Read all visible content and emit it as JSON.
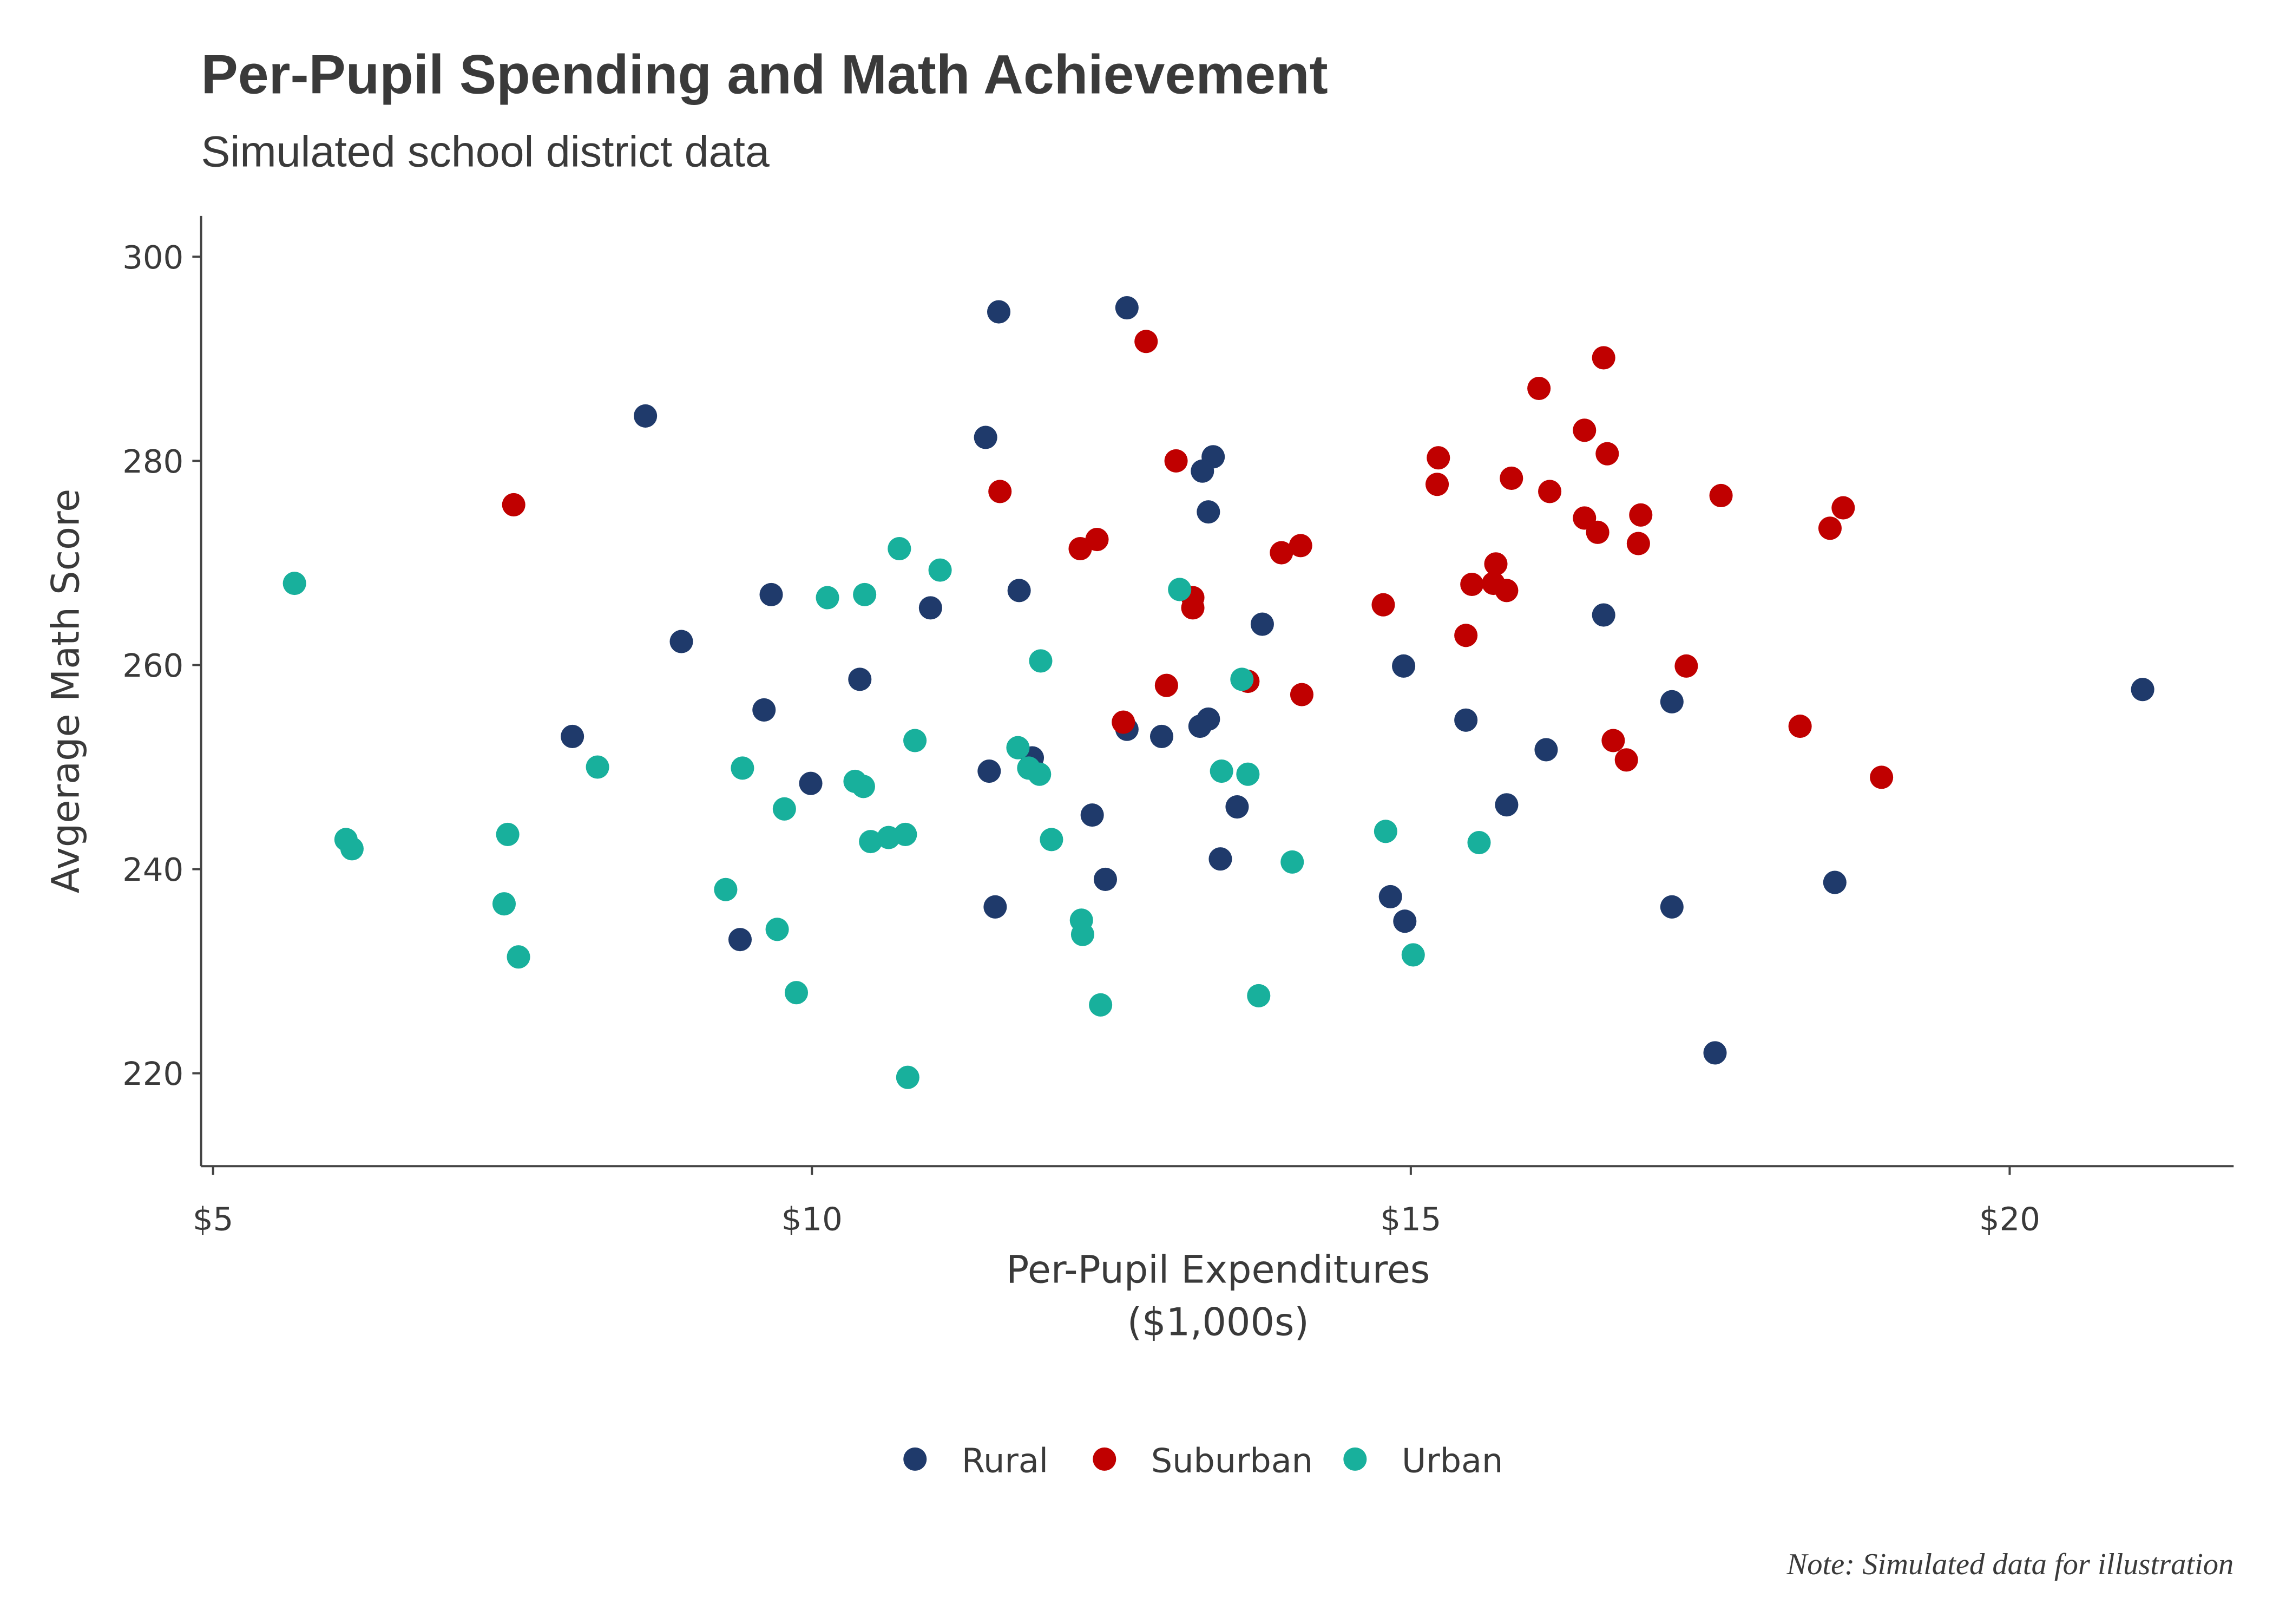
{
  "chart_data": {
    "type": "scatter",
    "title": "Per-Pupil Spending and Math Achievement",
    "subtitle": "Simulated school district data",
    "x_label": [
      "Per-Pupil Expenditures",
      "($1,000s)"
    ],
    "y_label": "Avgerage Math Score",
    "note": "Note: Simulated data for illustration",
    "xlim": [
      4.9,
      21.87
    ],
    "ylim": [
      210.9,
      304
    ],
    "xticks": [
      {
        "value": 5,
        "label": "$5"
      },
      {
        "value": 10,
        "label": "$10"
      },
      {
        "value": 15,
        "label": "$15"
      },
      {
        "value": 20,
        "label": "$20"
      }
    ],
    "yticks": [
      220,
      240,
      260,
      280,
      300
    ],
    "grid": false,
    "legend": "bottom",
    "series": [
      {
        "name": "Rural",
        "color": "#1f3a6b",
        "x": [
          8.61,
          8.91,
          8.0,
          9.6,
          9.66,
          9.4,
          9.99,
          10.4,
          10.99,
          11.56,
          11.45,
          11.48,
          11.53,
          11.73,
          11.84,
          12.63,
          12.34,
          12.45,
          12.63,
          12.92,
          13.35,
          13.26,
          13.31,
          13.31,
          13.24,
          13.55,
          13.41,
          13.76,
          14.83,
          14.95,
          14.94,
          15.46,
          16.13,
          15.8,
          16.61,
          17.18,
          17.18,
          17.54,
          18.54,
          21.11
        ],
        "values": [
          284.4,
          262.3,
          253.0,
          255.6,
          266.9,
          233.1,
          248.4,
          258.6,
          265.6,
          294.6,
          282.3,
          249.6,
          236.3,
          267.3,
          250.9,
          295.0,
          245.3,
          239.0,
          253.7,
          253.0,
          280.4,
          279.0,
          275.0,
          254.7,
          254.0,
          246.1,
          241.0,
          264.0,
          237.3,
          234.9,
          259.9,
          254.6,
          251.7,
          246.3,
          264.9,
          256.4,
          236.3,
          222.0,
          238.7,
          257.6
        ]
      },
      {
        "name": "Suburban",
        "color": "#c00000",
        "x": [
          7.51,
          11.57,
          12.24,
          12.38,
          12.79,
          12.6,
          13.04,
          12.96,
          13.18,
          13.18,
          13.64,
          13.92,
          14.08,
          14.09,
          14.77,
          15.23,
          15.22,
          15.46,
          15.51,
          15.71,
          15.69,
          15.8,
          15.84,
          16.07,
          16.16,
          16.45,
          16.45,
          16.61,
          16.64,
          16.56,
          16.92,
          16.9,
          16.69,
          16.8,
          17.3,
          17.59,
          18.25,
          18.5,
          18.61,
          18.93
        ],
        "values": [
          275.7,
          277.0,
          271.4,
          272.3,
          291.7,
          254.4,
          280.0,
          258.0,
          266.6,
          265.6,
          258.4,
          271.0,
          271.7,
          257.1,
          265.9,
          280.3,
          277.7,
          262.9,
          267.9,
          269.9,
          268.0,
          267.3,
          278.3,
          287.1,
          277.0,
          283.0,
          274.4,
          290.1,
          280.7,
          273.0,
          274.7,
          271.9,
          252.6,
          250.7,
          259.9,
          276.6,
          254.0,
          273.4,
          275.4,
          249.0
        ]
      },
      {
        "name": "Urban",
        "color": "#18b09c",
        "x": [
          5.68,
          6.11,
          6.16,
          7.46,
          7.43,
          7.55,
          8.21,
          9.28,
          9.42,
          9.77,
          9.71,
          9.87,
          10.13,
          10.44,
          10.36,
          10.43,
          10.49,
          10.64,
          10.78,
          10.73,
          11.07,
          10.86,
          10.8,
          11.72,
          11.81,
          11.9,
          11.91,
          12.0,
          12.25,
          12.26,
          12.41,
          13.07,
          13.42,
          13.64,
          13.59,
          13.73,
          14.01,
          14.79,
          15.02,
          15.57
        ],
        "values": [
          268.0,
          242.9,
          242.0,
          243.4,
          236.6,
          231.4,
          250.0,
          238.0,
          249.9,
          245.9,
          234.1,
          227.9,
          266.6,
          266.9,
          248.6,
          248.1,
          242.7,
          243.1,
          243.4,
          271.4,
          269.3,
          252.6,
          219.6,
          251.9,
          249.9,
          249.3,
          260.4,
          242.9,
          235.0,
          233.6,
          226.7,
          267.4,
          249.6,
          249.3,
          258.6,
          227.6,
          240.7,
          243.7,
          231.6,
          242.6
        ]
      }
    ]
  }
}
